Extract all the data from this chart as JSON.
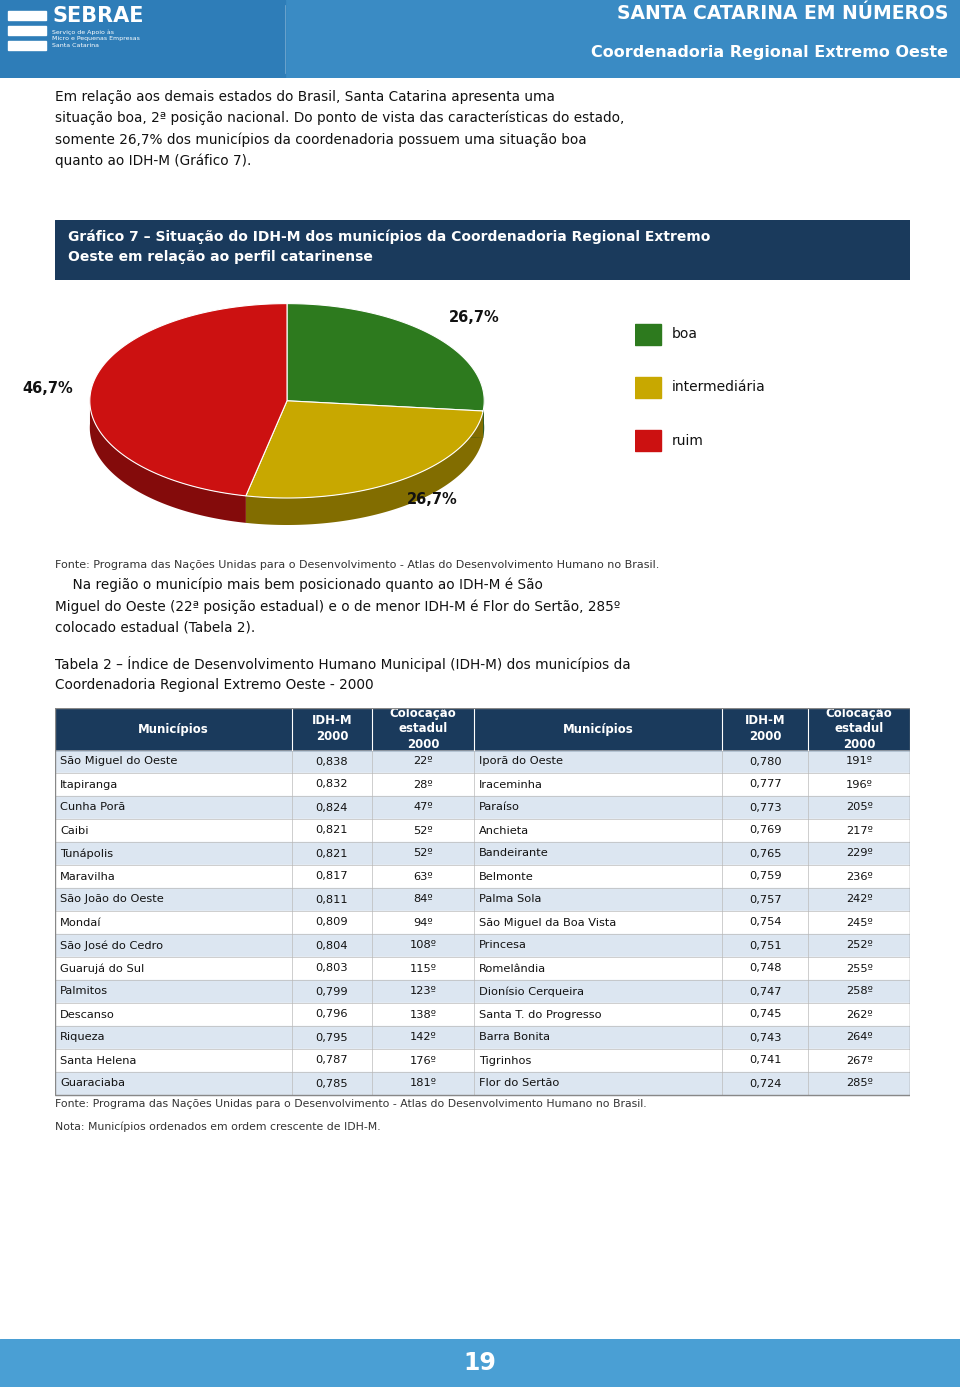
{
  "header_title1": "SANTA CATARINA EM NÚMEROS",
  "header_title2": "Coordenadoria Regional Extremo Oeste",
  "header_bg_color": "#3a8bc4",
  "header_left_bg": "#2a6fa8",
  "body_bg_color": "#f0f0f0",
  "intro_text_lines": [
    "Em relação aos demais estados do Brasil, Santa Catarina apresenta uma",
    "situação boa, 2ª posição nacional. Do ponto de vista das características do estado,",
    "somente 26,7% dos municípios da coordenadoria possuem uma situação boa",
    "quanto ao IDH-M (Gráfico 7)."
  ],
  "chart_title_line1": "Gráfico 7 – Situação do IDH-M dos municípios da Coordenadoria Regional Extremo",
  "chart_title_line2": "Oeste em relação ao perfil catarinense",
  "chart_title_bg": "#1a3a5c",
  "chart_title_color": "#ffffff",
  "pie_labels": [
    "boa",
    "intermediária",
    "ruim"
  ],
  "pie_values": [
    26.7,
    26.7,
    46.7
  ],
  "pie_colors": [
    "#2d7a1e",
    "#c8a800",
    "#cc1111"
  ],
  "pie_pct_labels": [
    "26,7%",
    "26,7%",
    "46,7%"
  ],
  "chart_source": "Fonte: Programa das Nações Unidas para o Desenvolvimento - Atlas do Desenvolvimento Humano no Brasil.",
  "para2_lines": [
    "    Na região o município mais bem posicionado quanto ao IDH-M é São",
    "Miguel do Oeste (22ª posição estadual) e o de menor IDH-M é Flor do Sertão, 285º",
    "colocado estadual (Tabela 2)."
  ],
  "table_title_line1": "Tabela 2 – Índice de Desenvolvimento Humano Municipal (IDH-M) dos municípios da",
  "table_title_line2": "Coordenadoria Regional Extremo Oeste - 2000",
  "table_header_bg": "#1a3a5c",
  "table_header_color": "#ffffff",
  "table_row_alt_bg": "#dce6f1",
  "table_row_bg": "#ffffff",
  "col_header_labels": [
    "Municípios",
    "IDH-M\n2000",
    "Colocação\nestadul\n2000",
    "Municípios",
    "IDH-M\n2000",
    "Colocação\nestadul\n2000"
  ],
  "left_municipalities": [
    [
      "São Miguel do Oeste",
      "0,838",
      "22º"
    ],
    [
      "Itapiranga",
      "0,832",
      "28º"
    ],
    [
      "Cunha Porã",
      "0,824",
      "47º"
    ],
    [
      "Caibi",
      "0,821",
      "52º"
    ],
    [
      "Tunápolis",
      "0,821",
      "52º"
    ],
    [
      "Maravilha",
      "0,817",
      "63º"
    ],
    [
      "São João do Oeste",
      "0,811",
      "84º"
    ],
    [
      "Mondaí",
      "0,809",
      "94º"
    ],
    [
      "São José do Cedro",
      "0,804",
      "108º"
    ],
    [
      "Guarujá do Sul",
      "0,803",
      "115º"
    ],
    [
      "Palmitos",
      "0,799",
      "123º"
    ],
    [
      "Descanso",
      "0,796",
      "138º"
    ],
    [
      "Riqueza",
      "0,795",
      "142º"
    ],
    [
      "Santa Helena",
      "0,787",
      "176º"
    ],
    [
      "Guaraciaba",
      "0,785",
      "181º"
    ]
  ],
  "right_municipalities": [
    [
      "Iporã do Oeste",
      "0,780",
      "191º"
    ],
    [
      "Iraceminha",
      "0,777",
      "196º"
    ],
    [
      "Paraíso",
      "0,773",
      "205º"
    ],
    [
      "Anchieta",
      "0,769",
      "217º"
    ],
    [
      "Bandeirante",
      "0,765",
      "229º"
    ],
    [
      "Belmonte",
      "0,759",
      "236º"
    ],
    [
      "Palma Sola",
      "0,757",
      "242º"
    ],
    [
      "São Miguel da Boa Vista",
      "0,754",
      "245º"
    ],
    [
      "Princesa",
      "0,751",
      "252º"
    ],
    [
      "Romelândia",
      "0,748",
      "255º"
    ],
    [
      "Dionísio Cerqueira",
      "0,747",
      "258º"
    ],
    [
      "Santa T. do Progresso",
      "0,745",
      "262º"
    ],
    [
      "Barra Bonita",
      "0,743",
      "264º"
    ],
    [
      "Tigrinhos",
      "0,741",
      "267º"
    ],
    [
      "Flor do Sertão",
      "0,724",
      "285º"
    ]
  ],
  "table_source": "Fonte: Programa das Nações Unidas para o Desenvolvimento - Atlas do Desenvolvimento Humano no Brasil.",
  "table_note": "Nota: Municípios ordenados em ordem crescente de IDH-M.",
  "footer_bg": "#4a9fd4",
  "footer_text": "19",
  "footer_text_color": "#ffffff"
}
